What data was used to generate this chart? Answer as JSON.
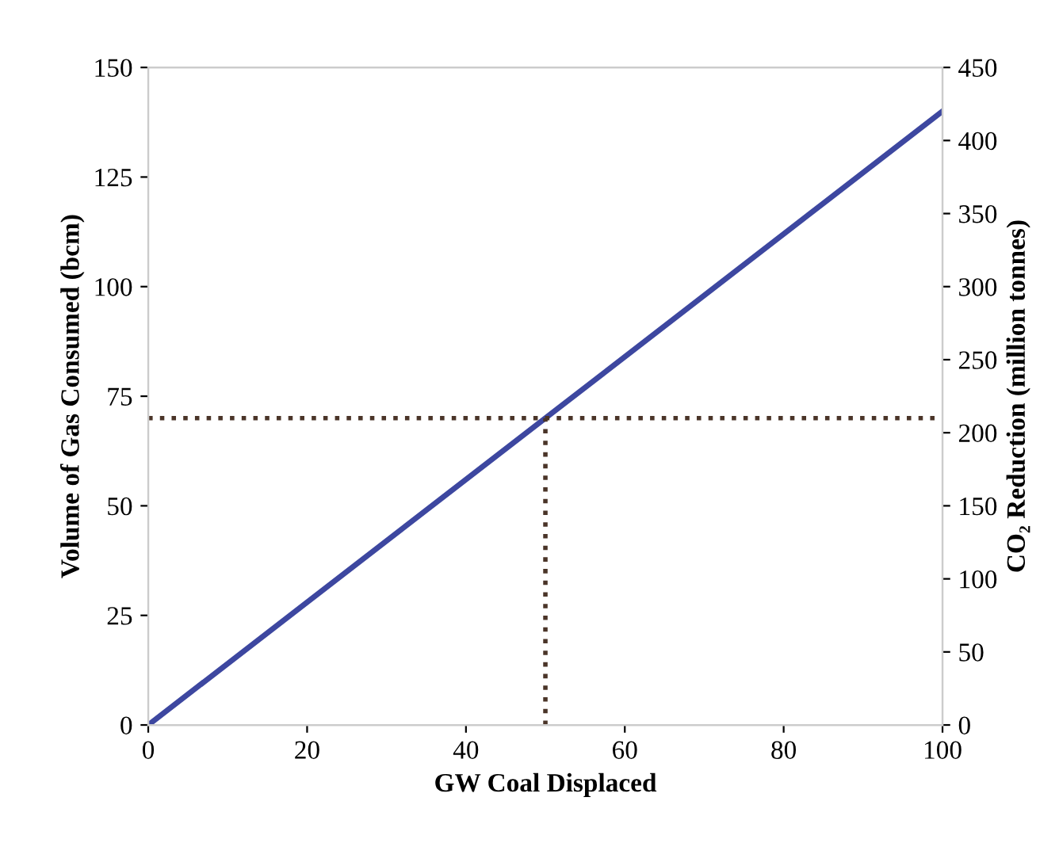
{
  "chart_data": {
    "type": "line",
    "xlabel": "GW Coal Displaced",
    "ylabel": "Volume of Gas Consumed (bcm)",
    "y2label": "CO₂ Reduction (million tonnes)",
    "series": [
      {
        "x": [
          0,
          100
        ],
        "values": [
          0,
          140
        ],
        "color": "#3d47a0",
        "line_style": "solid"
      },
      {
        "x": [
          0,
          100
        ],
        "values": [
          70,
          70
        ],
        "color": "#4a3428",
        "line_style": "dotted"
      },
      {
        "x": [
          50,
          50
        ],
        "values": [
          0,
          70
        ],
        "color": "#4a3428",
        "line_style": "dotted"
      }
    ],
    "xlim": [
      0,
      100
    ],
    "xticks": [
      0,
      20,
      40,
      60,
      80,
      100
    ],
    "ylim": [
      0,
      150
    ],
    "yticks": [
      0,
      25,
      50,
      75,
      100,
      125,
      150
    ],
    "y2lim": [
      0,
      450
    ],
    "y2ticks": [
      0,
      50,
      100,
      150,
      200,
      250,
      300,
      350,
      400,
      450
    ],
    "grid": false,
    "legend": false
  }
}
